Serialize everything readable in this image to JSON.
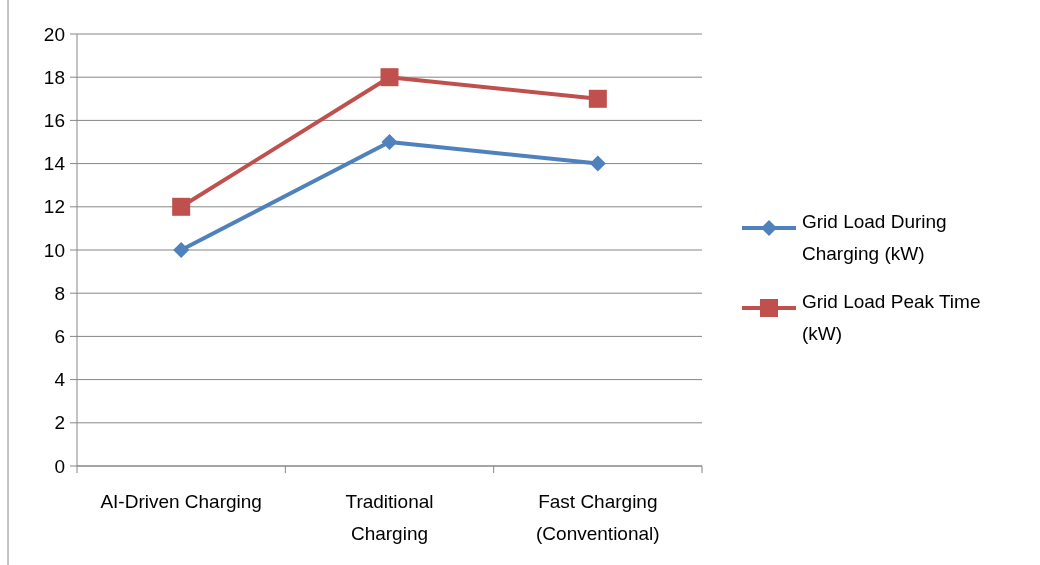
{
  "chart_data": {
    "type": "line",
    "categories": [
      "AI-Driven Charging",
      "Traditional Charging",
      "Fast Charging (Conventional)"
    ],
    "series": [
      {
        "name": "Grid Load During Charging (kW)",
        "color": "#4f81bd",
        "marker": "diamond",
        "values": [
          10,
          15,
          14
        ]
      },
      {
        "name": "Grid Load Peak Time (kW)",
        "color": "#c0504d",
        "marker": "square",
        "values": [
          12,
          18,
          17
        ]
      }
    ],
    "ylim": [
      0,
      20
    ],
    "yticks": [
      0,
      2,
      4,
      6,
      8,
      10,
      12,
      14,
      16,
      18,
      20
    ],
    "grid": "y",
    "legend": "right"
  }
}
